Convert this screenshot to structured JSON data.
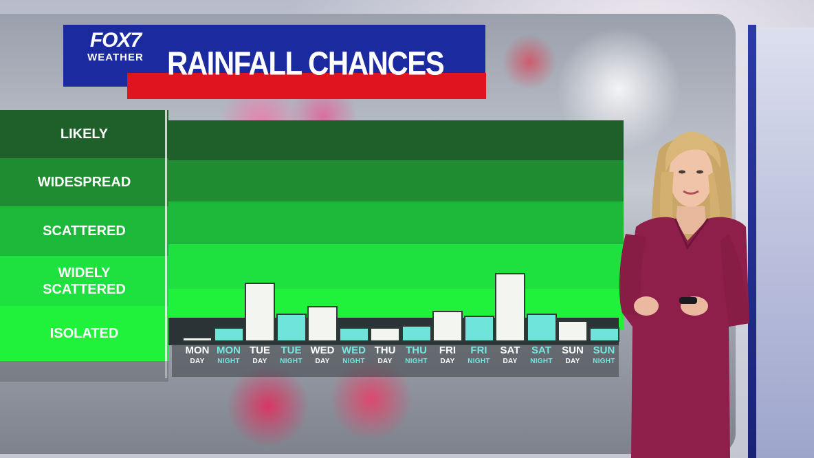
{
  "header": {
    "logo_main": "FOX7",
    "logo_sub": "WEATHER",
    "title": "RAINFALL CHANCES"
  },
  "colors": {
    "header_blue": "#1c2aa0",
    "header_red": "#e0141e",
    "band_likely": "#1e5f2a",
    "band_widespread": "#1f8c32",
    "band_scattered": "#1cb83a",
    "band_widely_scattered": "#1ee03e",
    "band_isolated": "#20f23c",
    "day_bar": "#f3f5f0",
    "night_bar": "#6fe4da",
    "night_label": "#78e6df"
  },
  "chart_data": {
    "type": "bar",
    "title": "RAINFALL CHANCES",
    "y_categories": [
      "LIKELY",
      "WIDESPREAD",
      "SCATTERED",
      "WIDELY SCATTERED",
      "ISOLATED"
    ],
    "y_scale_note": "bars measured in chance level units from bottom of ISOLATED band",
    "ylim": [
      0,
      5
    ],
    "categories": [
      {
        "day": "MON",
        "period": "DAY"
      },
      {
        "day": "MON",
        "period": "NIGHT"
      },
      {
        "day": "TUE",
        "period": "DAY"
      },
      {
        "day": "TUE",
        "period": "NIGHT"
      },
      {
        "day": "WED",
        "period": "DAY"
      },
      {
        "day": "WED",
        "period": "NIGHT"
      },
      {
        "day": "THU",
        "period": "DAY"
      },
      {
        "day": "THU",
        "period": "NIGHT"
      },
      {
        "day": "FRI",
        "period": "DAY"
      },
      {
        "day": "FRI",
        "period": "NIGHT"
      },
      {
        "day": "SAT",
        "period": "DAY"
      },
      {
        "day": "SAT",
        "period": "NIGHT"
      },
      {
        "day": "SUN",
        "period": "DAY"
      },
      {
        "day": "SUN",
        "period": "NIGHT"
      }
    ],
    "values": [
      0.1,
      0.3,
      1.25,
      0.6,
      0.75,
      0.3,
      0.3,
      0.35,
      0.65,
      0.55,
      1.45,
      0.6,
      0.45,
      0.3
    ],
    "legend": "none",
    "grid": false
  }
}
